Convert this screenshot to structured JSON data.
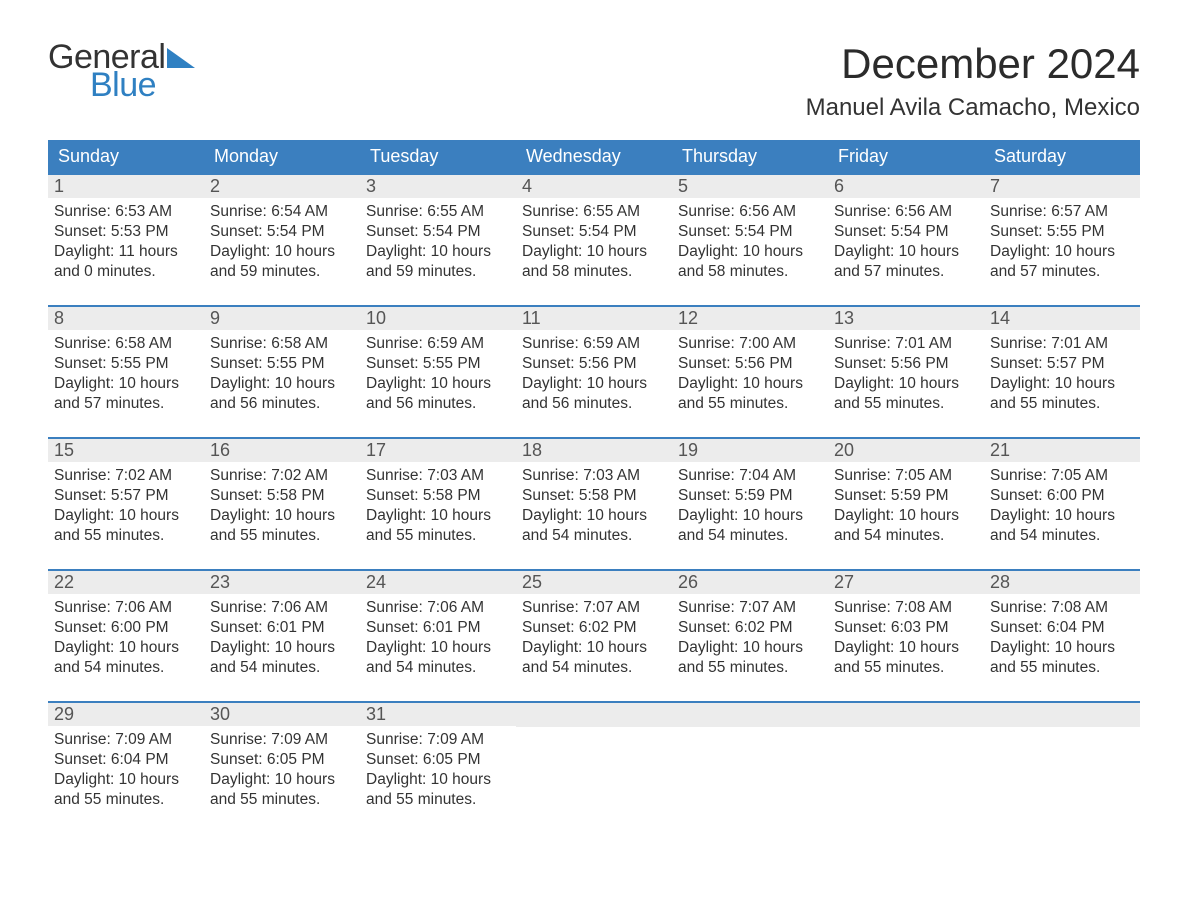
{
  "logo": {
    "text_general": "General",
    "text_blue": "Blue",
    "triangle_color": "#2f80c2"
  },
  "title": "December 2024",
  "location": "Manuel Avila Camacho, Mexico",
  "colors": {
    "header_bg": "#3b7fbf",
    "header_text": "#ffffff",
    "daynum_bg": "#ececec",
    "row_rule": "#3b7fbf",
    "body_text": "#333333",
    "page_bg": "#ffffff"
  },
  "typography": {
    "title_fontsize": 42,
    "location_fontsize": 24,
    "dayheader_fontsize": 18,
    "daynum_fontsize": 18,
    "body_fontsize": 15.5
  },
  "day_headers": [
    "Sunday",
    "Monday",
    "Tuesday",
    "Wednesday",
    "Thursday",
    "Friday",
    "Saturday"
  ],
  "labels": {
    "sunrise": "Sunrise:",
    "sunset": "Sunset:",
    "daylight": "Daylight:"
  },
  "weeks": [
    [
      {
        "n": "1",
        "sunrise": "6:53 AM",
        "sunset": "5:53 PM",
        "daylight1": "11 hours",
        "daylight2": "and 0 minutes."
      },
      {
        "n": "2",
        "sunrise": "6:54 AM",
        "sunset": "5:54 PM",
        "daylight1": "10 hours",
        "daylight2": "and 59 minutes."
      },
      {
        "n": "3",
        "sunrise": "6:55 AM",
        "sunset": "5:54 PM",
        "daylight1": "10 hours",
        "daylight2": "and 59 minutes."
      },
      {
        "n": "4",
        "sunrise": "6:55 AM",
        "sunset": "5:54 PM",
        "daylight1": "10 hours",
        "daylight2": "and 58 minutes."
      },
      {
        "n": "5",
        "sunrise": "6:56 AM",
        "sunset": "5:54 PM",
        "daylight1": "10 hours",
        "daylight2": "and 58 minutes."
      },
      {
        "n": "6",
        "sunrise": "6:56 AM",
        "sunset": "5:54 PM",
        "daylight1": "10 hours",
        "daylight2": "and 57 minutes."
      },
      {
        "n": "7",
        "sunrise": "6:57 AM",
        "sunset": "5:55 PM",
        "daylight1": "10 hours",
        "daylight2": "and 57 minutes."
      }
    ],
    [
      {
        "n": "8",
        "sunrise": "6:58 AM",
        "sunset": "5:55 PM",
        "daylight1": "10 hours",
        "daylight2": "and 57 minutes."
      },
      {
        "n": "9",
        "sunrise": "6:58 AM",
        "sunset": "5:55 PM",
        "daylight1": "10 hours",
        "daylight2": "and 56 minutes."
      },
      {
        "n": "10",
        "sunrise": "6:59 AM",
        "sunset": "5:55 PM",
        "daylight1": "10 hours",
        "daylight2": "and 56 minutes."
      },
      {
        "n": "11",
        "sunrise": "6:59 AM",
        "sunset": "5:56 PM",
        "daylight1": "10 hours",
        "daylight2": "and 56 minutes."
      },
      {
        "n": "12",
        "sunrise": "7:00 AM",
        "sunset": "5:56 PM",
        "daylight1": "10 hours",
        "daylight2": "and 55 minutes."
      },
      {
        "n": "13",
        "sunrise": "7:01 AM",
        "sunset": "5:56 PM",
        "daylight1": "10 hours",
        "daylight2": "and 55 minutes."
      },
      {
        "n": "14",
        "sunrise": "7:01 AM",
        "sunset": "5:57 PM",
        "daylight1": "10 hours",
        "daylight2": "and 55 minutes."
      }
    ],
    [
      {
        "n": "15",
        "sunrise": "7:02 AM",
        "sunset": "5:57 PM",
        "daylight1": "10 hours",
        "daylight2": "and 55 minutes."
      },
      {
        "n": "16",
        "sunrise": "7:02 AM",
        "sunset": "5:58 PM",
        "daylight1": "10 hours",
        "daylight2": "and 55 minutes."
      },
      {
        "n": "17",
        "sunrise": "7:03 AM",
        "sunset": "5:58 PM",
        "daylight1": "10 hours",
        "daylight2": "and 55 minutes."
      },
      {
        "n": "18",
        "sunrise": "7:03 AM",
        "sunset": "5:58 PM",
        "daylight1": "10 hours",
        "daylight2": "and 54 minutes."
      },
      {
        "n": "19",
        "sunrise": "7:04 AM",
        "sunset": "5:59 PM",
        "daylight1": "10 hours",
        "daylight2": "and 54 minutes."
      },
      {
        "n": "20",
        "sunrise": "7:05 AM",
        "sunset": "5:59 PM",
        "daylight1": "10 hours",
        "daylight2": "and 54 minutes."
      },
      {
        "n": "21",
        "sunrise": "7:05 AM",
        "sunset": "6:00 PM",
        "daylight1": "10 hours",
        "daylight2": "and 54 minutes."
      }
    ],
    [
      {
        "n": "22",
        "sunrise": "7:06 AM",
        "sunset": "6:00 PM",
        "daylight1": "10 hours",
        "daylight2": "and 54 minutes."
      },
      {
        "n": "23",
        "sunrise": "7:06 AM",
        "sunset": "6:01 PM",
        "daylight1": "10 hours",
        "daylight2": "and 54 minutes."
      },
      {
        "n": "24",
        "sunrise": "7:06 AM",
        "sunset": "6:01 PM",
        "daylight1": "10 hours",
        "daylight2": "and 54 minutes."
      },
      {
        "n": "25",
        "sunrise": "7:07 AM",
        "sunset": "6:02 PM",
        "daylight1": "10 hours",
        "daylight2": "and 54 minutes."
      },
      {
        "n": "26",
        "sunrise": "7:07 AM",
        "sunset": "6:02 PM",
        "daylight1": "10 hours",
        "daylight2": "and 55 minutes."
      },
      {
        "n": "27",
        "sunrise": "7:08 AM",
        "sunset": "6:03 PM",
        "daylight1": "10 hours",
        "daylight2": "and 55 minutes."
      },
      {
        "n": "28",
        "sunrise": "7:08 AM",
        "sunset": "6:04 PM",
        "daylight1": "10 hours",
        "daylight2": "and 55 minutes."
      }
    ],
    [
      {
        "n": "29",
        "sunrise": "7:09 AM",
        "sunset": "6:04 PM",
        "daylight1": "10 hours",
        "daylight2": "and 55 minutes."
      },
      {
        "n": "30",
        "sunrise": "7:09 AM",
        "sunset": "6:05 PM",
        "daylight1": "10 hours",
        "daylight2": "and 55 minutes."
      },
      {
        "n": "31",
        "sunrise": "7:09 AM",
        "sunset": "6:05 PM",
        "daylight1": "10 hours",
        "daylight2": "and 55 minutes."
      },
      null,
      null,
      null,
      null
    ]
  ]
}
